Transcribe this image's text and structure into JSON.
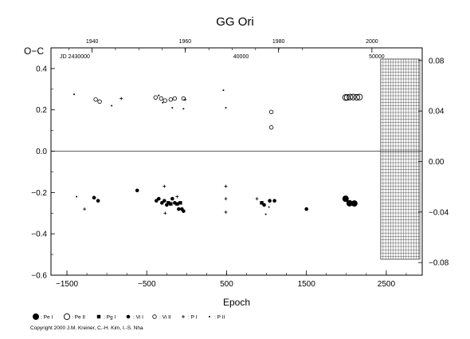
{
  "chart_data": {
    "type": "scatter",
    "title": "GG Ori",
    "ylabel": "O−C",
    "xlabel": "Epoch",
    "xlim": [
      -1700,
      2950
    ],
    "ylim": [
      -0.6,
      0.5
    ],
    "right_ylim": [
      -0.09,
      0.09
    ],
    "x_ticks": [
      -1500,
      -500,
      500,
      1500,
      2500
    ],
    "x_tick_labels": [
      "−1500",
      "−500",
      "500",
      "1500",
      "2500"
    ],
    "y_ticks": [
      -0.6,
      -0.4,
      -0.2,
      0.0,
      0.2,
      0.4
    ],
    "y_tick_labels": [
      "−0.6",
      "−0.4",
      "−0.2",
      "0.0",
      "0.2",
      "0.4"
    ],
    "right_y_ticks": [
      -0.08,
      -0.04,
      0.0,
      0.04,
      0.08
    ],
    "right_y_tick_labels": [
      "−0.08",
      "−0.04",
      "0.00",
      "0.04",
      "0.08"
    ],
    "top_year_ticks": [
      {
        "label": "1940",
        "epoch": -1185
      },
      {
        "label": "1960",
        "epoch": -20
      },
      {
        "label": "1980",
        "epoch": 1150
      },
      {
        "label": "2000",
        "epoch": 2320
      }
    ],
    "jd_labels": [
      {
        "label": "JD 2430000",
        "epoch": -1400
      },
      {
        "label": "40000",
        "epoch": 680
      },
      {
        "label": "50000",
        "epoch": 2380
      }
    ],
    "future_region_start": 2430,
    "grid": false,
    "legend": {
      "position": "bottom",
      "items": [
        {
          "symbol": "dot-large",
          "label": ": Pe I"
        },
        {
          "symbol": "circle-open",
          "label": ": Pe II"
        },
        {
          "symbol": "square",
          "label": ": Pg I"
        },
        {
          "symbol": "dot-small",
          "label": ": Vi I"
        },
        {
          "symbol": "circle-open-small",
          "label": ": Vi II"
        },
        {
          "symbol": "plus",
          "label": ": P I"
        },
        {
          "symbol": "dot-tiny",
          "label": ": P II"
        }
      ]
    },
    "series": [
      {
        "name": "Pe I",
        "marker": "dot-large",
        "points": [
          [
            1990,
            -0.23
          ],
          [
            2040,
            -0.252
          ],
          [
            2100,
            -0.253
          ]
        ]
      },
      {
        "name": "Pe II",
        "marker": "circle-open",
        "points": [
          [
            1990,
            0.26
          ],
          [
            2010,
            0.26
          ],
          [
            2045,
            0.262
          ],
          [
            2085,
            0.262
          ],
          [
            2130,
            0.261
          ],
          [
            2165,
            0.262
          ]
        ]
      },
      {
        "name": "Pg I",
        "marker": "square",
        "points": [
          [
            -230,
            -0.25
          ],
          [
            -200,
            -0.255
          ],
          [
            -120,
            -0.255
          ],
          [
            -80,
            -0.25
          ],
          [
            940,
            -0.25
          ]
        ]
      },
      {
        "name": "Vi I",
        "marker": "dot-small",
        "points": [
          [
            -1160,
            -0.225
          ],
          [
            -1110,
            -0.24
          ],
          [
            -620,
            -0.19
          ],
          [
            -380,
            -0.24
          ],
          [
            -350,
            -0.23
          ],
          [
            -310,
            -0.25
          ],
          [
            -280,
            -0.24
          ],
          [
            -250,
            -0.26
          ],
          [
            -180,
            -0.23
          ],
          [
            -150,
            -0.25
          ],
          [
            -100,
            -0.28
          ],
          [
            -60,
            -0.28
          ],
          [
            -40,
            -0.29
          ],
          [
            970,
            -0.26
          ],
          [
            1040,
            -0.24
          ],
          [
            1100,
            -0.24
          ],
          [
            1500,
            -0.28
          ]
        ]
      },
      {
        "name": "Vi II",
        "marker": "circle-open-small",
        "points": [
          [
            -1140,
            0.25
          ],
          [
            -1090,
            0.24
          ],
          [
            -390,
            0.26
          ],
          [
            -320,
            0.255
          ],
          [
            -270,
            0.245
          ],
          [
            -200,
            0.25
          ],
          [
            -150,
            0.255
          ],
          [
            -40,
            0.255
          ],
          [
            1060,
            0.19
          ],
          [
            1060,
            0.115
          ]
        ]
      },
      {
        "name": "P I",
        "marker": "plus",
        "points": [
          [
            -1280,
            -0.28
          ],
          [
            -820,
            0.255
          ],
          [
            -280,
            -0.17
          ],
          [
            -270,
            -0.3
          ],
          [
            -120,
            -0.22
          ],
          [
            -20,
            0.25
          ],
          [
            490,
            -0.17
          ],
          [
            490,
            -0.23
          ],
          [
            490,
            -0.295
          ],
          [
            880,
            -0.23
          ]
        ]
      },
      {
        "name": "P II",
        "marker": "dot-tiny",
        "points": [
          [
            -1410,
            0.275
          ],
          [
            -1380,
            -0.22
          ],
          [
            -940,
            0.22
          ],
          [
            -350,
            0.27
          ],
          [
            -300,
            0.235
          ],
          [
            -180,
            0.21
          ],
          [
            -40,
            0.205
          ],
          [
            460,
            0.295
          ],
          [
            490,
            0.21
          ],
          [
            990,
            -0.305
          ],
          [
            1030,
            -0.27
          ]
        ]
      }
    ]
  },
  "copyright": "Copyright 2000 J.M. Kreiner, C.-H. Kim, I.-S. Nha"
}
